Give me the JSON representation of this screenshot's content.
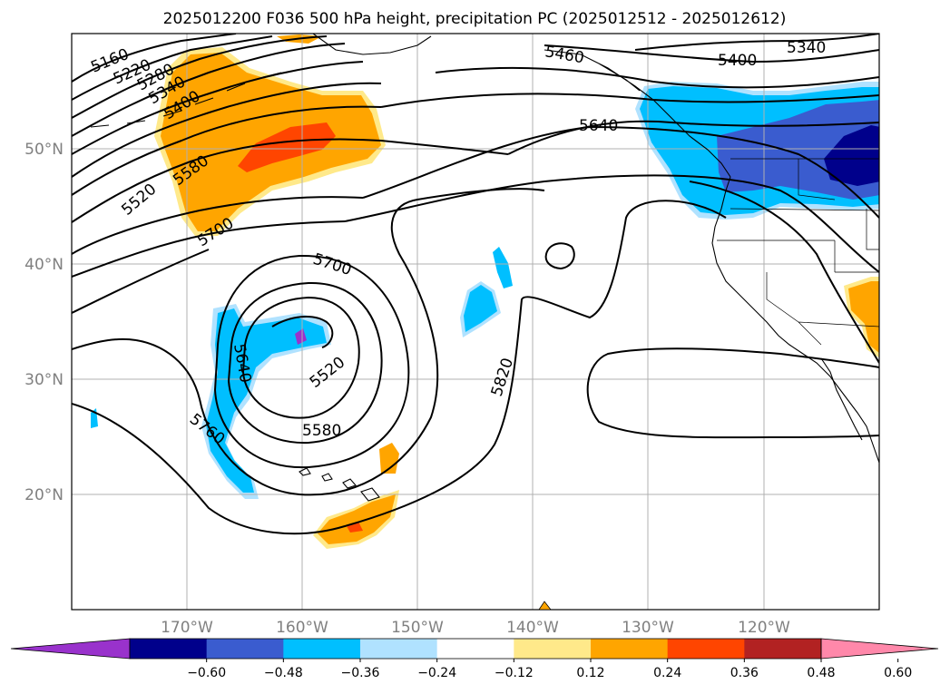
{
  "title": "2025012200 F036 500 hPa height, precipitation PC (2025012512 - 2025012612)",
  "lat_labels": [
    "50°N",
    "40°N",
    "30°N",
    "20°N"
  ],
  "lon_labels": [
    "170°W",
    "160°W",
    "150°W",
    "140°W",
    "130°W",
    "120°W"
  ],
  "colorbar": {
    "tick_labels": [
      "−0.60",
      "−0.48",
      "−0.36",
      "−0.24",
      "−0.12",
      "0.12",
      "0.24",
      "0.36",
      "0.48",
      "0.60"
    ],
    "colors": [
      "#9932cc",
      "#00008b",
      "#3a5ccf",
      "#00bfff",
      "#b0e2ff",
      "#ffffff",
      "#ffe98a",
      "#ffa500",
      "#ff4500",
      "#b22222",
      "#ff88aa"
    ]
  },
  "contour_labels": [
    {
      "id": "c5160",
      "text": "5160"
    },
    {
      "id": "c5220",
      "text": "5220"
    },
    {
      "id": "c5280",
      "text": "5280"
    },
    {
      "id": "c5340a",
      "text": "5340"
    },
    {
      "id": "c5400a",
      "text": "5400"
    },
    {
      "id": "c5580a",
      "text": "5580"
    },
    {
      "id": "c5520a",
      "text": "5520"
    },
    {
      "id": "c5700a",
      "text": "5700"
    },
    {
      "id": "c5700b",
      "text": "5700"
    },
    {
      "id": "c5640a",
      "text": "5640"
    },
    {
      "id": "c5520b",
      "text": "5520"
    },
    {
      "id": "c5760",
      "text": "5760"
    },
    {
      "id": "c5580b",
      "text": "5580"
    },
    {
      "id": "c5820",
      "text": "5820"
    },
    {
      "id": "c5460",
      "text": "5460"
    },
    {
      "id": "c5400b",
      "text": "5400"
    },
    {
      "id": "c5340b",
      "text": "5340"
    },
    {
      "id": "c5640b",
      "text": "5640"
    }
  ]
}
